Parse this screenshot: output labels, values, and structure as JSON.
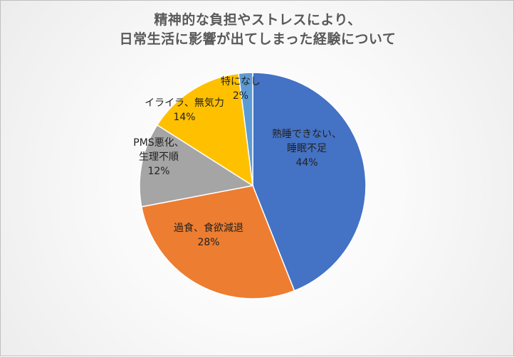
{
  "chart_data": {
    "type": "pie",
    "title": [
      "精神的な負担やストレスにより、",
      "日常生活に影響が出てしまった経験について"
    ],
    "slices": [
      {
        "label_lines": [
          "熟睡できない、",
          "睡眠不足"
        ],
        "percent_label": "44%",
        "value": 44,
        "color": "#4472C4"
      },
      {
        "label_lines": [
          "過食、食欲減退"
        ],
        "percent_label": "28%",
        "value": 28,
        "color": "#ED7D31"
      },
      {
        "label_lines": [
          "PMS悪化、",
          "生理不順"
        ],
        "percent_label": "12%",
        "value": 12,
        "color": "#A5A5A5"
      },
      {
        "label_lines": [
          "イライラ、無気力"
        ],
        "percent_label": "14%",
        "value": 14,
        "color": "#FFC000"
      },
      {
        "label_lines": [
          "特になし"
        ],
        "percent_label": "2%",
        "value": 2,
        "color": "#5B9BD5"
      }
    ],
    "legend": "none",
    "start_angle_deg": 0,
    "direction": "clockwise"
  }
}
